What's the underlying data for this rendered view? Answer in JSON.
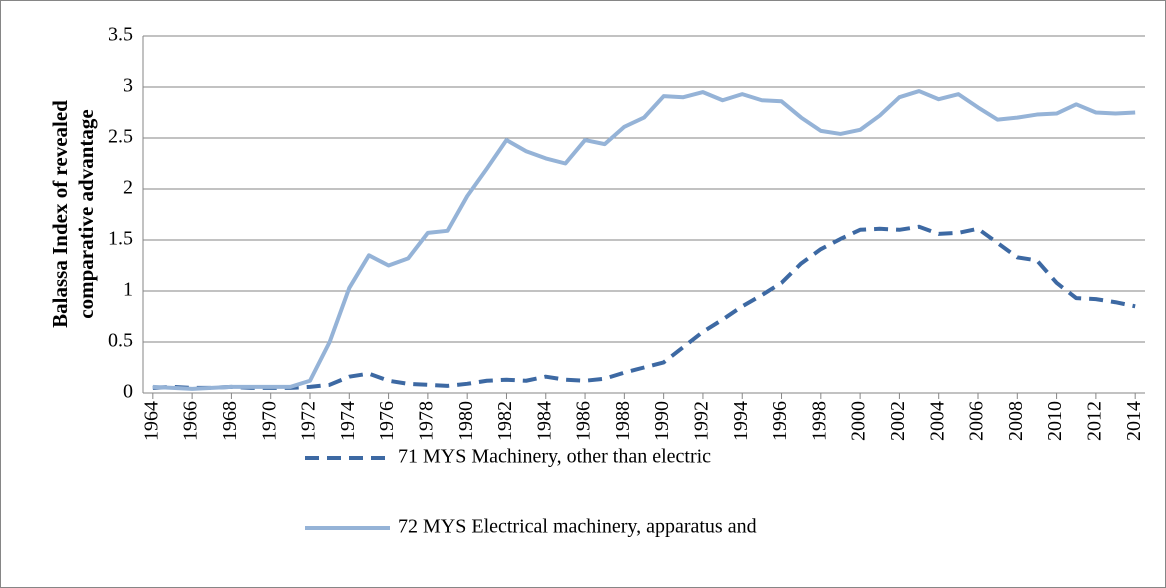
{
  "chart_data": {
    "type": "line",
    "y_label": [
      "Balassa Index of revealed",
      "comparative advantage"
    ],
    "x": [
      1964,
      1965,
      1966,
      1967,
      1968,
      1969,
      1970,
      1971,
      1972,
      1973,
      1974,
      1975,
      1976,
      1977,
      1978,
      1979,
      1980,
      1981,
      1982,
      1983,
      1984,
      1985,
      1986,
      1987,
      1988,
      1989,
      1990,
      1991,
      1992,
      1993,
      1994,
      1995,
      1996,
      1997,
      1998,
      1999,
      2000,
      2001,
      2002,
      2003,
      2004,
      2005,
      2006,
      2007,
      2008,
      2009,
      2010,
      2011,
      2012,
      2013,
      2014
    ],
    "series": [
      {
        "name": "71 MYS Machinery, other than electric",
        "color": "#3d69a3",
        "dash": true,
        "values": [
          0.05,
          0.06,
          0.05,
          0.05,
          0.06,
          0.05,
          0.05,
          0.05,
          0.06,
          0.08,
          0.16,
          0.19,
          0.12,
          0.09,
          0.08,
          0.07,
          0.09,
          0.12,
          0.13,
          0.12,
          0.16,
          0.13,
          0.12,
          0.14,
          0.2,
          0.25,
          0.3,
          0.45,
          0.6,
          0.72,
          0.85,
          0.96,
          1.08,
          1.27,
          1.41,
          1.51,
          1.6,
          1.61,
          1.6,
          1.63,
          1.56,
          1.57,
          1.61,
          1.47,
          1.33,
          1.3,
          1.08,
          0.93,
          0.92,
          0.89,
          0.85
        ]
      },
      {
        "name": "72 MYS Electrical machinery, apparatus and",
        "color": "#95b3d7",
        "dash": false,
        "values": [
          0.06,
          0.05,
          0.04,
          0.05,
          0.06,
          0.06,
          0.06,
          0.06,
          0.12,
          0.5,
          1.03,
          1.35,
          1.25,
          1.32,
          1.57,
          1.59,
          1.93,
          2.2,
          2.48,
          2.37,
          2.3,
          2.25,
          2.48,
          2.44,
          2.61,
          2.7,
          2.91,
          2.9,
          2.95,
          2.87,
          2.93,
          2.87,
          2.86,
          2.7,
          2.57,
          2.54,
          2.58,
          2.72,
          2.9,
          2.96,
          2.88,
          2.93,
          2.8,
          2.68,
          2.7,
          2.73,
          2.74,
          2.83,
          2.75,
          2.74,
          2.75
        ]
      }
    ],
    "xlim": [
      1964,
      2014
    ],
    "xticks": [
      1964,
      1966,
      1968,
      1970,
      1972,
      1974,
      1976,
      1978,
      1980,
      1982,
      1984,
      1986,
      1988,
      1990,
      1992,
      1994,
      1996,
      1998,
      2000,
      2002,
      2004,
      2006,
      2008,
      2010,
      2012,
      2014
    ],
    "ylim": [
      0,
      3.5
    ],
    "yticks": [
      0,
      0.5,
      1,
      1.5,
      2,
      2.5,
      3,
      3.5
    ],
    "grid": true
  }
}
